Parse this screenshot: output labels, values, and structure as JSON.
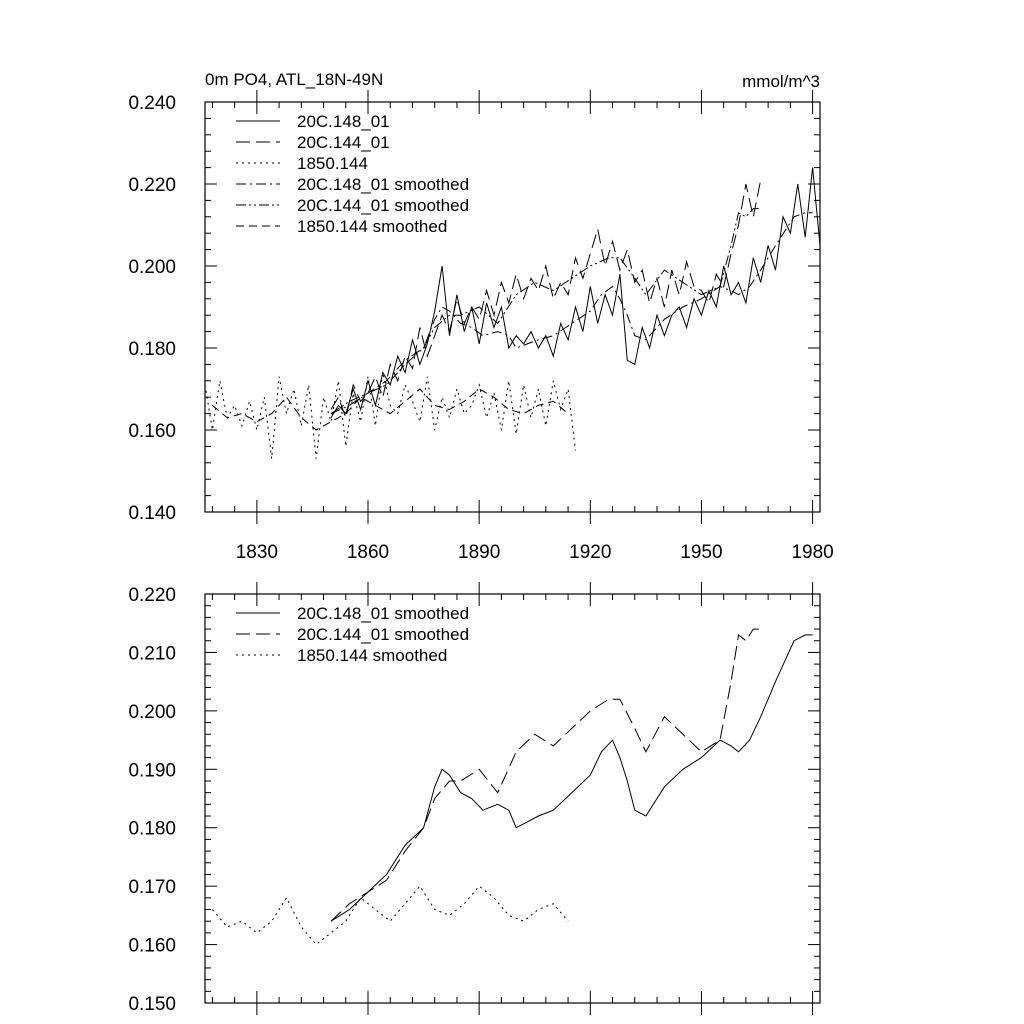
{
  "colors": {
    "line": "#000000",
    "background": "#ffffff"
  },
  "chart_data": [
    {
      "type": "line",
      "title": "0m PO4, ATL_18N-49N",
      "units": "mmol/m^3",
      "xlim": [
        1816,
        1982
      ],
      "ylim": [
        0.14,
        0.24
      ],
      "xticks": [
        1830,
        1860,
        1890,
        1920,
        1950,
        1980
      ],
      "yticks": [
        0.14,
        0.16,
        0.18,
        0.2,
        0.22,
        0.24
      ],
      "yticks_labels": [
        "0.140",
        "0.160",
        "0.180",
        "0.200",
        "0.220",
        "0.240"
      ],
      "legend_position": "top-left",
      "series": [
        {
          "name": "20C.148_01",
          "dash": "solid",
          "x": [
            1850,
            1852,
            1854,
            1856,
            1858,
            1860,
            1862,
            1864,
            1866,
            1868,
            1870,
            1872,
            1874,
            1876,
            1878,
            1880,
            1882,
            1884,
            1886,
            1888,
            1890,
            1892,
            1894,
            1896,
            1898,
            1900,
            1902,
            1904,
            1906,
            1908,
            1910,
            1912,
            1914,
            1916,
            1918,
            1920,
            1922,
            1924,
            1926,
            1928,
            1930,
            1932,
            1934,
            1936,
            1938,
            1940,
            1942,
            1944,
            1946,
            1948,
            1950,
            1952,
            1954,
            1956,
            1958,
            1960,
            1962,
            1964,
            1966,
            1968,
            1970,
            1972,
            1974,
            1976,
            1978,
            1980,
            1982
          ],
          "y": [
            0.163,
            0.166,
            0.164,
            0.17,
            0.165,
            0.172,
            0.166,
            0.174,
            0.171,
            0.178,
            0.174,
            0.182,
            0.176,
            0.181,
            0.189,
            0.2,
            0.183,
            0.193,
            0.184,
            0.19,
            0.181,
            0.191,
            0.185,
            0.19,
            0.18,
            0.183,
            0.181,
            0.184,
            0.18,
            0.183,
            0.178,
            0.186,
            0.182,
            0.19,
            0.184,
            0.195,
            0.186,
            0.193,
            0.188,
            0.198,
            0.177,
            0.176,
            0.185,
            0.18,
            0.188,
            0.183,
            0.188,
            0.19,
            0.185,
            0.192,
            0.188,
            0.194,
            0.19,
            0.2,
            0.193,
            0.196,
            0.191,
            0.202,
            0.196,
            0.205,
            0.199,
            0.212,
            0.208,
            0.22,
            0.207,
            0.224,
            0.205
          ]
        },
        {
          "name": "20C.144_01",
          "dash": "long-dash",
          "x": [
            1850,
            1852,
            1854,
            1856,
            1858,
            1860,
            1862,
            1864,
            1866,
            1868,
            1870,
            1872,
            1874,
            1876,
            1878,
            1880,
            1882,
            1884,
            1886,
            1888,
            1890,
            1892,
            1894,
            1896,
            1898,
            1900,
            1902,
            1904,
            1906,
            1908,
            1910,
            1912,
            1914,
            1916,
            1918,
            1920,
            1922,
            1924,
            1926,
            1928,
            1930,
            1932,
            1934,
            1936,
            1938,
            1940,
            1942,
            1944,
            1946,
            1948,
            1950,
            1952,
            1954,
            1956,
            1958,
            1960,
            1962,
            1964,
            1966
          ],
          "y": [
            0.165,
            0.168,
            0.163,
            0.171,
            0.167,
            0.169,
            0.173,
            0.168,
            0.176,
            0.172,
            0.178,
            0.175,
            0.185,
            0.178,
            0.183,
            0.188,
            0.184,
            0.192,
            0.186,
            0.19,
            0.187,
            0.194,
            0.188,
            0.196,
            0.191,
            0.198,
            0.192,
            0.197,
            0.194,
            0.2,
            0.192,
            0.196,
            0.193,
            0.202,
            0.197,
            0.203,
            0.209,
            0.2,
            0.206,
            0.199,
            0.204,
            0.196,
            0.199,
            0.191,
            0.197,
            0.19,
            0.199,
            0.193,
            0.201,
            0.195,
            0.194,
            0.191,
            0.198,
            0.195,
            0.203,
            0.21,
            0.22,
            0.212,
            0.221
          ]
        },
        {
          "name": "1850.144",
          "dash": "dot",
          "x": [
            1816,
            1818,
            1820,
            1822,
            1824,
            1826,
            1828,
            1830,
            1832,
            1834,
            1836,
            1838,
            1840,
            1842,
            1844,
            1846,
            1848,
            1850,
            1852,
            1854,
            1856,
            1858,
            1860,
            1862,
            1864,
            1866,
            1868,
            1870,
            1872,
            1874,
            1876,
            1878,
            1880,
            1882,
            1884,
            1886,
            1888,
            1890,
            1892,
            1894,
            1896,
            1898,
            1900,
            1902,
            1904,
            1906,
            1908,
            1910,
            1912,
            1914,
            1916
          ],
          "y": [
            0.171,
            0.16,
            0.172,
            0.163,
            0.166,
            0.161,
            0.167,
            0.16,
            0.168,
            0.153,
            0.173,
            0.164,
            0.17,
            0.161,
            0.171,
            0.153,
            0.168,
            0.162,
            0.172,
            0.156,
            0.169,
            0.162,
            0.173,
            0.161,
            0.174,
            0.166,
            0.164,
            0.171,
            0.167,
            0.162,
            0.173,
            0.16,
            0.168,
            0.163,
            0.17,
            0.164,
            0.166,
            0.171,
            0.163,
            0.169,
            0.16,
            0.172,
            0.159,
            0.171,
            0.163,
            0.17,
            0.161,
            0.172,
            0.165,
            0.17,
            0.155
          ]
        },
        {
          "name": "20C.148_01 smoothed",
          "dash": "dash-dot",
          "x": [
            1850,
            1855,
            1860,
            1865,
            1870,
            1875,
            1878,
            1880,
            1882,
            1885,
            1888,
            1891,
            1895,
            1898,
            1900,
            1903,
            1906,
            1910,
            1915,
            1920,
            1923,
            1926,
            1928,
            1930,
            1932,
            1935,
            1940,
            1945,
            1950,
            1955,
            1958,
            1960,
            1963,
            1966,
            1970,
            1975,
            1978,
            1980
          ],
          "y": [
            0.164,
            0.166,
            0.169,
            0.172,
            0.177,
            0.18,
            0.187,
            0.19,
            0.189,
            0.186,
            0.185,
            0.183,
            0.184,
            0.183,
            0.18,
            0.181,
            0.182,
            0.183,
            0.186,
            0.189,
            0.193,
            0.195,
            0.192,
            0.188,
            0.183,
            0.182,
            0.187,
            0.19,
            0.192,
            0.195,
            0.194,
            0.193,
            0.195,
            0.199,
            0.205,
            0.212,
            0.213,
            0.213
          ]
        },
        {
          "name": "20C.144_01 smoothed",
          "dash": "dash-dot-dot",
          "x": [
            1850,
            1855,
            1860,
            1865,
            1870,
            1875,
            1878,
            1882,
            1885,
            1890,
            1895,
            1900,
            1905,
            1910,
            1915,
            1920,
            1925,
            1928,
            1932,
            1935,
            1940,
            1945,
            1950,
            1955,
            1958,
            1960,
            1962,
            1964,
            1966
          ],
          "y": [
            0.164,
            0.167,
            0.169,
            0.171,
            0.176,
            0.18,
            0.185,
            0.188,
            0.188,
            0.19,
            0.186,
            0.193,
            0.196,
            0.194,
            0.197,
            0.2,
            0.202,
            0.202,
            0.197,
            0.193,
            0.199,
            0.196,
            0.193,
            0.195,
            0.205,
            0.213,
            0.212,
            0.214,
            0.214
          ]
        },
        {
          "name": "1850.144 smoothed",
          "dash": "dash",
          "x": [
            1818,
            1822,
            1826,
            1830,
            1834,
            1838,
            1842,
            1846,
            1850,
            1854,
            1858,
            1862,
            1866,
            1870,
            1874,
            1878,
            1882,
            1886,
            1890,
            1894,
            1898,
            1902,
            1906,
            1910,
            1914
          ],
          "y": [
            0.166,
            0.163,
            0.164,
            0.162,
            0.164,
            0.168,
            0.163,
            0.16,
            0.162,
            0.164,
            0.168,
            0.166,
            0.164,
            0.167,
            0.17,
            0.166,
            0.165,
            0.167,
            0.17,
            0.168,
            0.165,
            0.164,
            0.166,
            0.167,
            0.164
          ]
        }
      ]
    },
    {
      "type": "line",
      "xlim": [
        1816,
        1982
      ],
      "ylim": [
        0.15,
        0.22
      ],
      "xticks": [
        1830,
        1860,
        1890,
        1920,
        1950,
        1980
      ],
      "yticks": [
        0.15,
        0.16,
        0.17,
        0.18,
        0.19,
        0.2,
        0.21,
        0.22
      ],
      "yticks_labels": [
        "0.150",
        "0.160",
        "0.170",
        "0.180",
        "0.190",
        "0.200",
        "0.210",
        "0.220"
      ],
      "legend_position": "top-left",
      "series": [
        {
          "name": "20C.148_01 smoothed",
          "dash": "solid",
          "x": [
            1850,
            1855,
            1860,
            1865,
            1870,
            1875,
            1878,
            1880,
            1882,
            1885,
            1888,
            1891,
            1895,
            1898,
            1900,
            1903,
            1906,
            1910,
            1915,
            1920,
            1923,
            1926,
            1928,
            1930,
            1932,
            1935,
            1940,
            1945,
            1950,
            1955,
            1958,
            1960,
            1963,
            1966,
            1970,
            1975,
            1978,
            1980
          ],
          "y": [
            0.164,
            0.166,
            0.169,
            0.172,
            0.177,
            0.18,
            0.187,
            0.19,
            0.189,
            0.186,
            0.185,
            0.183,
            0.184,
            0.183,
            0.18,
            0.181,
            0.182,
            0.183,
            0.186,
            0.189,
            0.193,
            0.195,
            0.192,
            0.188,
            0.183,
            0.182,
            0.187,
            0.19,
            0.192,
            0.195,
            0.194,
            0.193,
            0.195,
            0.199,
            0.205,
            0.212,
            0.213,
            0.213
          ]
        },
        {
          "name": "20C.144_01 smoothed",
          "dash": "long-dash",
          "x": [
            1850,
            1855,
            1860,
            1865,
            1870,
            1875,
            1878,
            1882,
            1885,
            1890,
            1895,
            1900,
            1905,
            1910,
            1915,
            1920,
            1925,
            1928,
            1932,
            1935,
            1940,
            1945,
            1950,
            1955,
            1958,
            1960,
            1962,
            1964,
            1966
          ],
          "y": [
            0.164,
            0.167,
            0.169,
            0.171,
            0.176,
            0.18,
            0.185,
            0.188,
            0.188,
            0.19,
            0.186,
            0.193,
            0.196,
            0.194,
            0.197,
            0.2,
            0.202,
            0.202,
            0.197,
            0.193,
            0.199,
            0.196,
            0.193,
            0.195,
            0.205,
            0.213,
            0.212,
            0.214,
            0.214
          ]
        },
        {
          "name": "1850.144 smoothed",
          "dash": "dot",
          "x": [
            1818,
            1822,
            1826,
            1830,
            1834,
            1838,
            1842,
            1846,
            1850,
            1854,
            1858,
            1862,
            1866,
            1870,
            1874,
            1878,
            1882,
            1886,
            1890,
            1894,
            1898,
            1902,
            1906,
            1910,
            1914
          ],
          "y": [
            0.166,
            0.163,
            0.164,
            0.162,
            0.164,
            0.168,
            0.163,
            0.16,
            0.162,
            0.164,
            0.168,
            0.166,
            0.164,
            0.167,
            0.17,
            0.166,
            0.165,
            0.167,
            0.17,
            0.168,
            0.165,
            0.164,
            0.166,
            0.167,
            0.164
          ]
        }
      ]
    }
  ]
}
